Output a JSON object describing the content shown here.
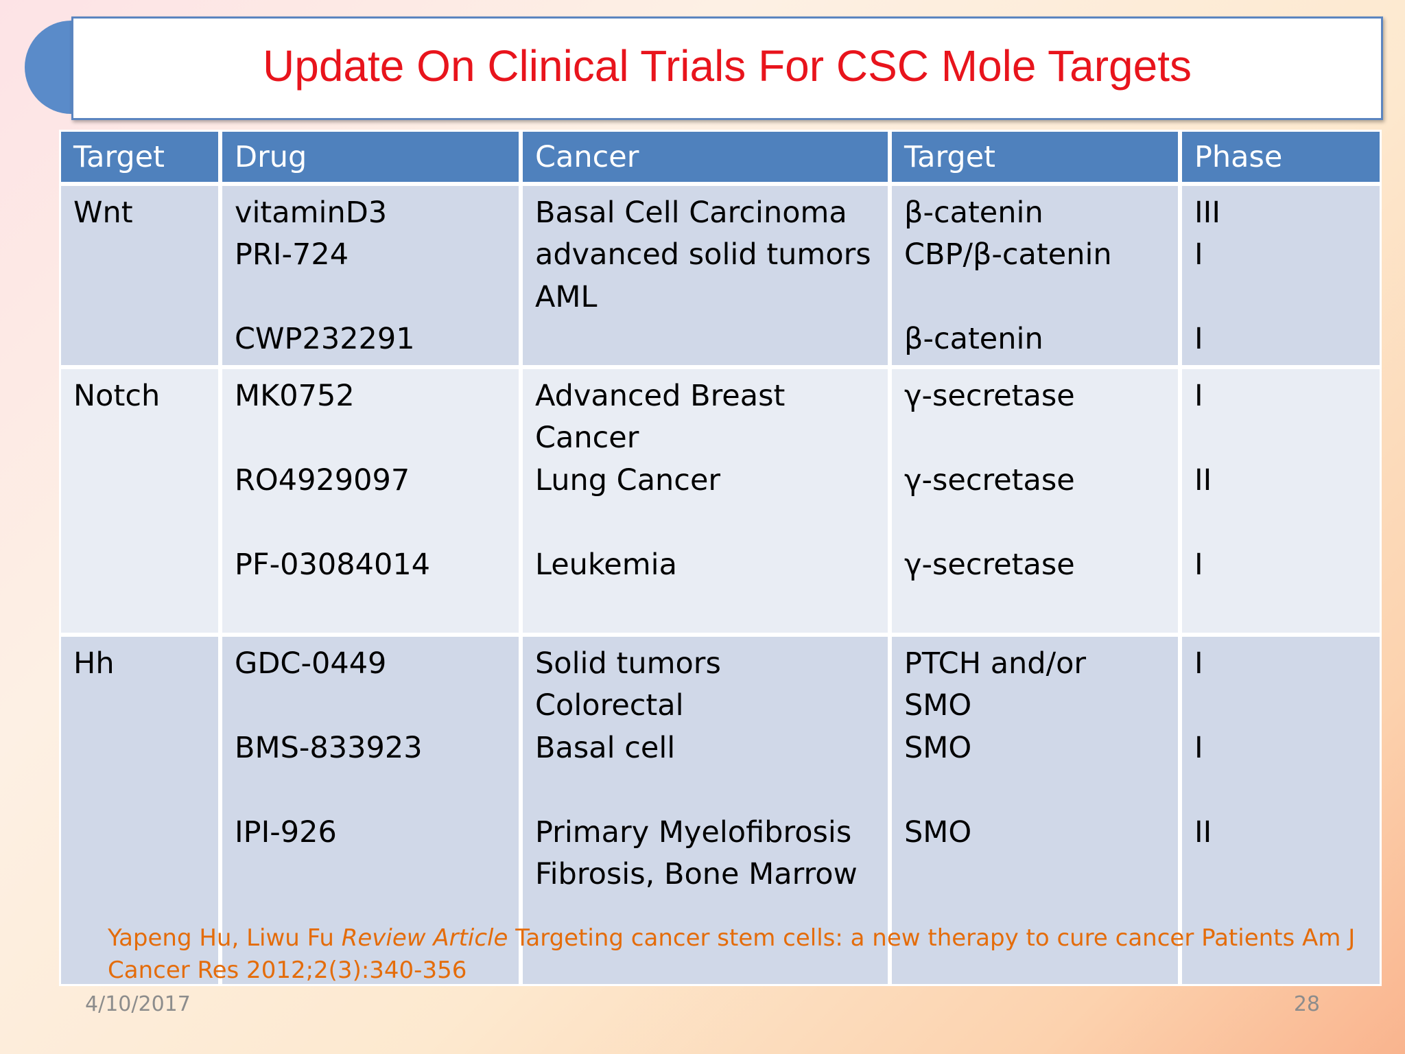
{
  "title": "Update On Clinical Trials For CSC Mole Targets",
  "table": {
    "header": [
      "Target",
      "Drug",
      "Cancer",
      "Target",
      "Phase"
    ],
    "rows": [
      [
        [
          "Wnt"
        ],
        [
          "vitaminD3",
          "PRI-724",
          "CWP232291"
        ],
        [
          "Basal Cell Carcinoma",
          "advanced solid tumors",
          "AML"
        ],
        [
          "β-catenin",
          "CBP/β-catenin",
          "β-catenin"
        ],
        [
          "III",
          "I",
          "I"
        ]
      ],
      [
        [
          "Notch"
        ],
        [
          "MK0752",
          "RO4929097",
          "PF-03084014"
        ],
        [
          "Advanced Breast",
          "Cancer",
          "Lung Cancer",
          "Leukemia"
        ],
        [
          "γ-secretase",
          "γ-secretase",
          "γ-secretase"
        ],
        [
          "I",
          "II",
          "I"
        ]
      ],
      [
        [
          "Hh"
        ],
        [
          "GDC-0449",
          "BMS-833923",
          "IPI-926"
        ],
        [
          "Solid tumors",
          "Colorectal",
          "Basal cell",
          "Primary Myelofibrosis",
          "Fibrosis, Bone Marrow"
        ],
        [
          "PTCH and/or",
          "SMO",
          "SMO",
          "SMO"
        ],
        [
          "I",
          "I",
          "II"
        ]
      ]
    ]
  },
  "citation": {
    "authors": "Yapeng Hu, Liwu Fu",
    "article_type": "Review Article",
    "rest": "Targeting cancer stem cells: a new therapy to cure cancer Patients Am J Cancer Res 2012;2(3):340-356"
  },
  "footer": {
    "date": "4/10/2017",
    "page": "28"
  }
}
